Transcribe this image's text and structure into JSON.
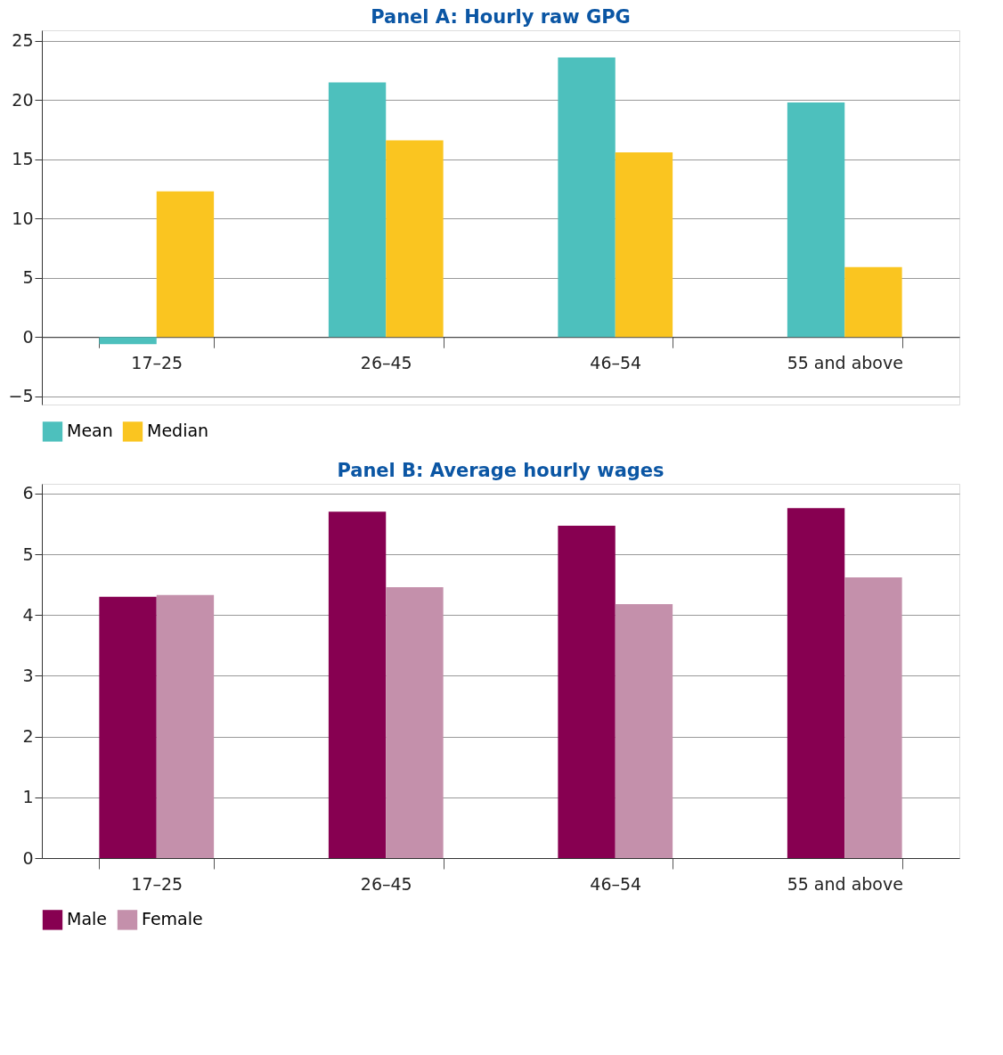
{
  "chart_data": [
    {
      "type": "bar",
      "title": "Panel A: Hourly raw GPG",
      "categories": [
        "17–25",
        "26–45",
        "46–54",
        "55 and above"
      ],
      "series": [
        {
          "name": "Mean",
          "color": "#4dc0bd",
          "values": [
            -0.6,
            21.5,
            23.6,
            19.8
          ]
        },
        {
          "name": "Median",
          "color": "#fac520",
          "values": [
            12.3,
            16.6,
            15.6,
            5.9
          ]
        }
      ],
      "ylim": [
        -5.7,
        25.9
      ],
      "yticks": [
        -5,
        0,
        5,
        10,
        15,
        20,
        25
      ],
      "grid": "y",
      "legend": "bottom"
    },
    {
      "type": "bar",
      "title": "Panel B: Average hourly wages",
      "categories": [
        "17–25",
        "26–45",
        "46–54",
        "55 and above"
      ],
      "series": [
        {
          "name": "Male",
          "color": "#870051",
          "values": [
            4.3,
            5.7,
            5.47,
            5.76
          ]
        },
        {
          "name": "Female",
          "color": "#c490ab",
          "values": [
            4.33,
            4.46,
            4.18,
            4.62
          ]
        }
      ],
      "ylim": [
        0,
        6.16
      ],
      "yticks": [
        0,
        1,
        2,
        3,
        4,
        5,
        6
      ],
      "grid": "y",
      "legend": "bottom"
    }
  ]
}
